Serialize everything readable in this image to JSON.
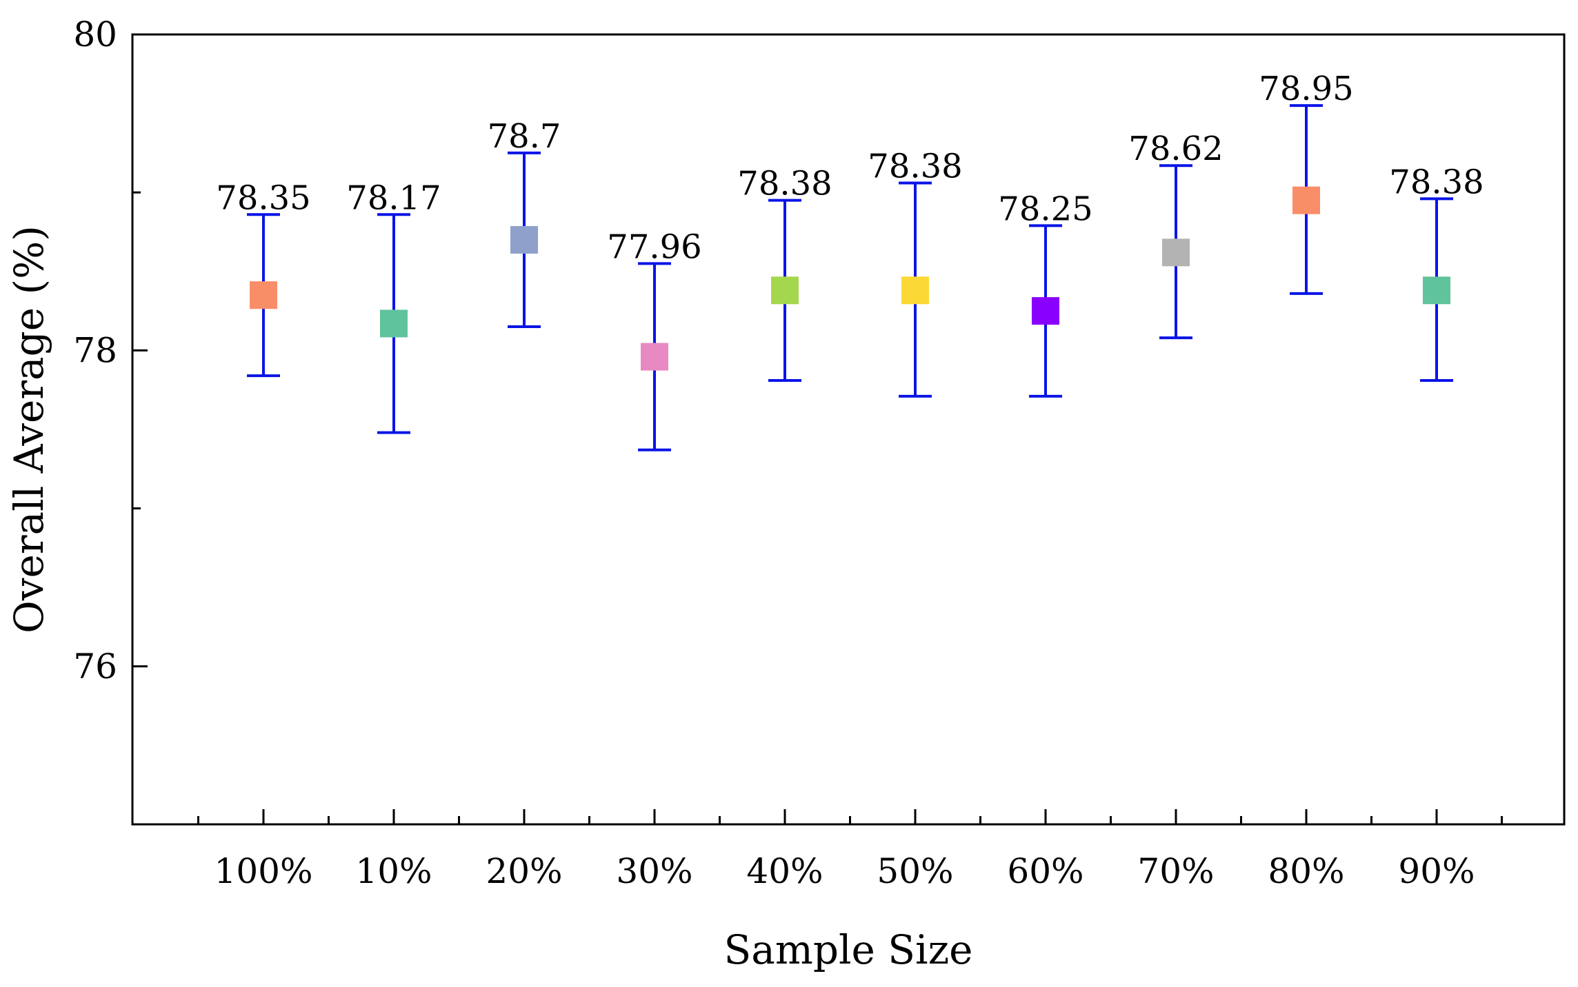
{
  "chart_data": {
    "type": "scatter",
    "title": "",
    "xlabel": "Sample Size",
    "ylabel": "Overall Average (%)",
    "ylim": [
      75,
      80
    ],
    "yticks_labeled": [
      76,
      78,
      80
    ],
    "yticks_minor": [
      77,
      79
    ],
    "grid": false,
    "categories": [
      "100%",
      "10%",
      "20%",
      "30%",
      "40%",
      "50%",
      "60%",
      "70%",
      "80%",
      "90%"
    ],
    "values": [
      78.35,
      78.17,
      78.7,
      77.96,
      78.38,
      78.38,
      78.25,
      78.62,
      78.95,
      78.38
    ],
    "labels": [
      "78.35",
      "78.17",
      "78.7",
      "77.96",
      "78.38",
      "78.38",
      "78.25",
      "78.62",
      "78.95",
      "78.38"
    ],
    "error_upper": [
      78.86,
      78.86,
      79.25,
      78.55,
      78.95,
      79.06,
      78.79,
      79.17,
      79.55,
      78.96
    ],
    "error_lower": [
      77.84,
      77.48,
      78.15,
      77.37,
      77.81,
      77.71,
      77.71,
      78.08,
      78.36,
      77.81
    ],
    "error_bar_color": "#0a14e6",
    "marker_colors": [
      "#f88e68",
      "#5fc39b",
      "#8fa0cb",
      "#e889c2",
      "#a5d74e",
      "#fcd835",
      "#8a00ff",
      "#b3b3b3",
      "#f88e68",
      "#5fc39b"
    ]
  }
}
